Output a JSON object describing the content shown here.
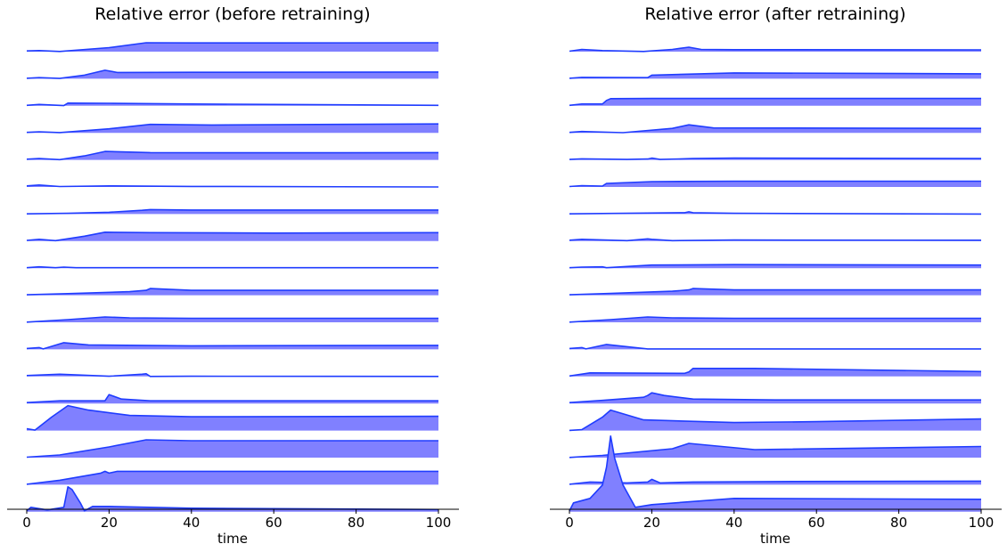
{
  "colors": {
    "fill": "#8080ff",
    "line": "#1f3cff",
    "axis": "#000000"
  },
  "chart_data": [
    {
      "type": "area",
      "title": "Relative error (before retraining)",
      "xlabel": "time",
      "xlim": [
        0,
        100
      ],
      "xticks": [
        0,
        20,
        40,
        60,
        80,
        100
      ],
      "xtick_labels": [
        "0",
        "20",
        "40",
        "60",
        "80",
        "100"
      ],
      "series": [
        {
          "x": [
            0,
            3,
            8,
            20,
            29,
            40,
            60,
            100
          ],
          "y": [
            0.08,
            0.12,
            0.02,
            0.45,
            1.0,
            0.98,
            0.98,
            1.0
          ]
        },
        {
          "x": [
            0,
            3,
            8,
            14,
            19,
            22,
            40,
            100
          ],
          "y": [
            0.05,
            0.12,
            0.03,
            0.4,
            0.95,
            0.7,
            0.72,
            0.75
          ]
        },
        {
          "x": [
            0,
            3,
            9,
            10,
            20,
            40,
            100
          ],
          "y": [
            0.05,
            0.15,
            0.02,
            0.3,
            0.28,
            0.2,
            0.05
          ]
        },
        {
          "x": [
            0,
            3,
            8,
            20,
            30,
            45,
            100
          ],
          "y": [
            0.05,
            0.12,
            0.03,
            0.45,
            0.95,
            0.88,
            1.0
          ]
        },
        {
          "x": [
            0,
            3,
            8,
            14,
            19,
            30,
            60,
            100
          ],
          "y": [
            0.08,
            0.15,
            0.03,
            0.45,
            0.95,
            0.82,
            0.8,
            0.82
          ]
        },
        {
          "x": [
            0,
            3,
            8,
            20,
            40,
            100
          ],
          "y": [
            0.12,
            0.22,
            0.05,
            0.12,
            0.06,
            0.0
          ]
        },
        {
          "x": [
            0,
            10,
            20,
            28,
            30,
            40,
            100
          ],
          "y": [
            0.02,
            0.08,
            0.2,
            0.42,
            0.5,
            0.45,
            0.45
          ]
        },
        {
          "x": [
            0,
            3,
            7,
            14,
            19,
            30,
            60,
            100
          ],
          "y": [
            0.08,
            0.2,
            0.05,
            0.55,
            1.0,
            0.95,
            0.9,
            0.95
          ]
        },
        {
          "x": [
            0,
            3,
            7,
            9,
            12,
            100
          ],
          "y": [
            0.05,
            0.15,
            0.05,
            0.12,
            0.05,
            0.05
          ]
        },
        {
          "x": [
            0,
            10,
            25,
            29,
            30,
            40,
            100
          ],
          "y": [
            0.05,
            0.18,
            0.4,
            0.55,
            0.75,
            0.55,
            0.55
          ]
        },
        {
          "x": [
            0,
            10,
            19,
            25,
            40,
            100
          ],
          "y": [
            0.02,
            0.3,
            0.6,
            0.5,
            0.45,
            0.45
          ]
        },
        {
          "x": [
            0,
            3,
            4,
            9,
            15,
            40,
            100
          ],
          "y": [
            0.1,
            0.2,
            0.05,
            0.75,
            0.5,
            0.4,
            0.45
          ]
        },
        {
          "x": [
            0,
            8,
            20,
            28,
            29,
            30,
            40,
            100
          ],
          "y": [
            0.1,
            0.25,
            0.02,
            0.25,
            0.3,
            0.0,
            0.02,
            0.0
          ]
        },
        {
          "x": [
            0,
            8,
            19,
            20,
            23,
            30,
            50,
            100
          ],
          "y": [
            0.1,
            0.3,
            0.3,
            1.0,
            0.5,
            0.3,
            0.3,
            0.3
          ]
        },
        {
          "x": [
            0,
            2,
            6,
            10,
            15,
            25,
            40,
            100
          ],
          "y": [
            0.2,
            0.05,
            1.5,
            2.8,
            2.3,
            1.7,
            1.55,
            1.6
          ]
        },
        {
          "x": [
            0,
            8,
            20,
            29,
            40,
            100
          ],
          "y": [
            0.05,
            0.3,
            1.2,
            2.0,
            1.9,
            1.9
          ]
        },
        {
          "x": [
            0,
            8,
            18,
            19,
            20,
            22,
            30,
            100
          ],
          "y": [
            0.05,
            0.5,
            1.3,
            1.5,
            1.3,
            1.5,
            1.5,
            1.5
          ]
        },
        {
          "x": [
            0,
            1,
            5,
            9,
            10,
            11,
            13,
            14,
            16,
            20,
            40,
            100
          ],
          "y": [
            0.1,
            0.5,
            0.2,
            0.5,
            2.8,
            2.5,
            1.0,
            0.1,
            0.6,
            0.6,
            0.4,
            0.25
          ]
        }
      ]
    },
    {
      "type": "area",
      "title": "Relative error (after retraining)",
      "xlabel": "time",
      "xlim": [
        0,
        100
      ],
      "xticks": [
        0,
        20,
        40,
        60,
        80,
        100
      ],
      "xtick_labels": [
        "0",
        "20",
        "40",
        "60",
        "80",
        "100"
      ],
      "series": [
        {
          "x": [
            0,
            3,
            8,
            18,
            25,
            29,
            32,
            40,
            100
          ],
          "y": [
            0.05,
            0.25,
            0.12,
            0.02,
            0.25,
            0.5,
            0.25,
            0.22,
            0.2
          ]
        },
        {
          "x": [
            0,
            3,
            19,
            20,
            40,
            100
          ],
          "y": [
            0.05,
            0.15,
            0.12,
            0.4,
            0.65,
            0.55
          ]
        },
        {
          "x": [
            0,
            3,
            8,
            9,
            10,
            20,
            100
          ],
          "y": [
            0.05,
            0.2,
            0.2,
            0.6,
            0.8,
            0.82,
            0.82
          ]
        },
        {
          "x": [
            0,
            3,
            13,
            25,
            29,
            35,
            100
          ],
          "y": [
            0.05,
            0.15,
            0.02,
            0.5,
            0.9,
            0.55,
            0.5
          ]
        },
        {
          "x": [
            0,
            3,
            14,
            19,
            20,
            22,
            30,
            40,
            100
          ],
          "y": [
            0.05,
            0.12,
            0.05,
            0.1,
            0.2,
            0.05,
            0.15,
            0.2,
            0.15
          ]
        },
        {
          "x": [
            0,
            3,
            8,
            9,
            20,
            40,
            100
          ],
          "y": [
            0.05,
            0.15,
            0.1,
            0.4,
            0.6,
            0.65,
            0.65
          ]
        },
        {
          "x": [
            0,
            28,
            29,
            30,
            40,
            100
          ],
          "y": [
            0.02,
            0.15,
            0.25,
            0.15,
            0.08,
            0.0
          ]
        },
        {
          "x": [
            0,
            3,
            14,
            19,
            20,
            25,
            40,
            100
          ],
          "y": [
            0.1,
            0.2,
            0.05,
            0.25,
            0.2,
            0.05,
            0.12,
            0.1
          ]
        },
        {
          "x": [
            0,
            3,
            8,
            9,
            20,
            40,
            100
          ],
          "y": [
            0.05,
            0.12,
            0.15,
            0.05,
            0.35,
            0.4,
            0.35
          ]
        },
        {
          "x": [
            0,
            10,
            25,
            29,
            30,
            40,
            100
          ],
          "y": [
            0.05,
            0.2,
            0.45,
            0.6,
            0.75,
            0.6,
            0.6
          ]
        },
        {
          "x": [
            0,
            10,
            19,
            25,
            40,
            100
          ],
          "y": [
            0.02,
            0.3,
            0.6,
            0.5,
            0.45,
            0.45
          ]
        },
        {
          "x": [
            0,
            3,
            4,
            9,
            19,
            45,
            100
          ],
          "y": [
            0.1,
            0.2,
            0.05,
            0.55,
            0.05,
            0.05,
            0.05
          ]
        },
        {
          "x": [
            0,
            5,
            28,
            29,
            30,
            45,
            100
          ],
          "y": [
            0.05,
            0.4,
            0.35,
            0.5,
            0.9,
            0.9,
            0.55
          ]
        },
        {
          "x": [
            0,
            8,
            18,
            19,
            20,
            23,
            30,
            50,
            100
          ],
          "y": [
            0.1,
            0.35,
            0.7,
            0.9,
            1.2,
            0.9,
            0.5,
            0.4,
            0.4
          ]
        },
        {
          "x": [
            0,
            3,
            8,
            10,
            18,
            40,
            60,
            100
          ],
          "y": [
            0.02,
            0.1,
            1.5,
            2.3,
            1.2,
            0.9,
            1.0,
            1.3
          ]
        },
        {
          "x": [
            0,
            8,
            25,
            29,
            45,
            100
          ],
          "y": [
            0.02,
            0.25,
            1.0,
            1.6,
            0.9,
            1.25
          ]
        },
        {
          "x": [
            0,
            5,
            14,
            19,
            20,
            22,
            30,
            50,
            100
          ],
          "y": [
            0.05,
            0.3,
            0.2,
            0.3,
            0.6,
            0.2,
            0.3,
            0.35,
            0.4
          ]
        },
        {
          "x": [
            0,
            1,
            5,
            8,
            9,
            10,
            11,
            13,
            16,
            20,
            40,
            100
          ],
          "y": [
            0.1,
            1.0,
            1.5,
            3.0,
            5.0,
            8.5,
            6.0,
            3.0,
            0.5,
            0.8,
            1.5,
            1.4
          ]
        }
      ]
    }
  ]
}
